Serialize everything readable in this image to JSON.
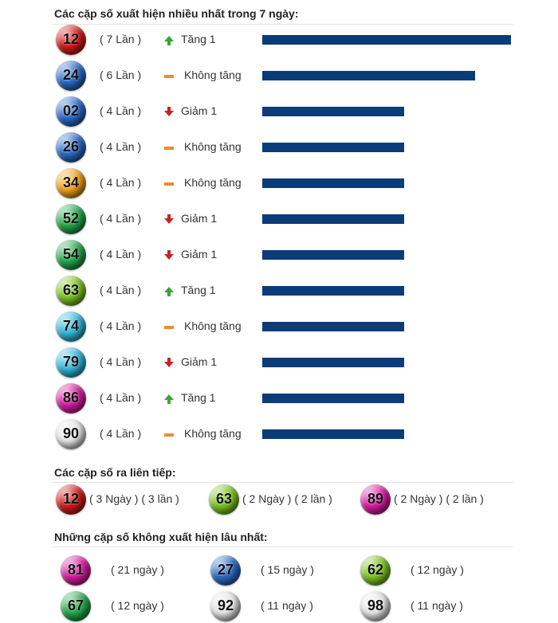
{
  "section1": {
    "title": "Các cặp số xuất hiện nhiều nhất trong 7 ngày:",
    "rows": [
      {
        "number": "12",
        "count": "( 7 Lần )",
        "trend": "Tăng 1",
        "dir": "up",
        "color": "#d21a1a",
        "value": 7
      },
      {
        "number": "24",
        "count": "( 6 Lần )",
        "trend": "Không tăng",
        "dir": "same",
        "color": "#2a6ac8",
        "value": 6
      },
      {
        "number": "02",
        "count": "( 4 Lần )",
        "trend": "Giảm 1",
        "dir": "down",
        "color": "#2a6ac8",
        "value": 4
      },
      {
        "number": "26",
        "count": "( 4 Lần )",
        "trend": "Không tăng",
        "dir": "same",
        "color": "#2a6ac8",
        "value": 4
      },
      {
        "number": "34",
        "count": "( 4 Lần )",
        "trend": "Không tăng",
        "dir": "same",
        "color": "#f0a018",
        "value": 4
      },
      {
        "number": "52",
        "count": "( 4 Lần )",
        "trend": "Giảm 1",
        "dir": "down",
        "color": "#22a84a",
        "value": 4
      },
      {
        "number": "54",
        "count": "( 4 Lần )",
        "trend": "Giảm 1",
        "dir": "down",
        "color": "#22a84a",
        "value": 4
      },
      {
        "number": "63",
        "count": "( 4 Lần )",
        "trend": "Tăng 1",
        "dir": "up",
        "color": "#7cc420",
        "value": 4
      },
      {
        "number": "74",
        "count": "( 4 Lần )",
        "trend": "Không tăng",
        "dir": "same",
        "color": "#30b8d8",
        "value": 4
      },
      {
        "number": "79",
        "count": "( 4 Lần )",
        "trend": "Giảm 1",
        "dir": "down",
        "color": "#30b8d8",
        "value": 4
      },
      {
        "number": "86",
        "count": "( 4 Lần )",
        "trend": "Tăng 1",
        "dir": "up",
        "color": "#d81aa0",
        "value": 4
      },
      {
        "number": "90",
        "count": "( 4 Lần )",
        "trend": "Không tăng",
        "dir": "same",
        "color": "#e6e6e6",
        "value": 4
      }
    ]
  },
  "section2": {
    "title": "Các cặp số ra liên tiếp:",
    "items": [
      {
        "number": "12",
        "text": "( 3 Ngày ) ( 3 lần )",
        "color": "#d21a1a"
      },
      {
        "number": "63",
        "text": "( 2 Ngày ) ( 2 lần )",
        "color": "#7cc420"
      },
      {
        "number": "89",
        "text": "( 2 Ngày ) ( 2 lần )",
        "color": "#d81aa0"
      }
    ]
  },
  "section3": {
    "title": "Những cặp số không xuất hiện lâu nhất:",
    "items": [
      {
        "number": "81",
        "text": "( 21 ngày )",
        "color": "#d81aa0"
      },
      {
        "number": "27",
        "text": "( 15 ngày )",
        "color": "#2a6ac8"
      },
      {
        "number": "62",
        "text": "( 12 ngày )",
        "color": "#7cc420"
      },
      {
        "number": "67",
        "text": "( 12 ngày )",
        "color": "#22a84a"
      },
      {
        "number": "92",
        "text": "( 11 ngày )",
        "color": "#e6e6e6"
      },
      {
        "number": "98",
        "text": "( 11 ngày )",
        "color": "#e6e6e6"
      }
    ]
  }
}
